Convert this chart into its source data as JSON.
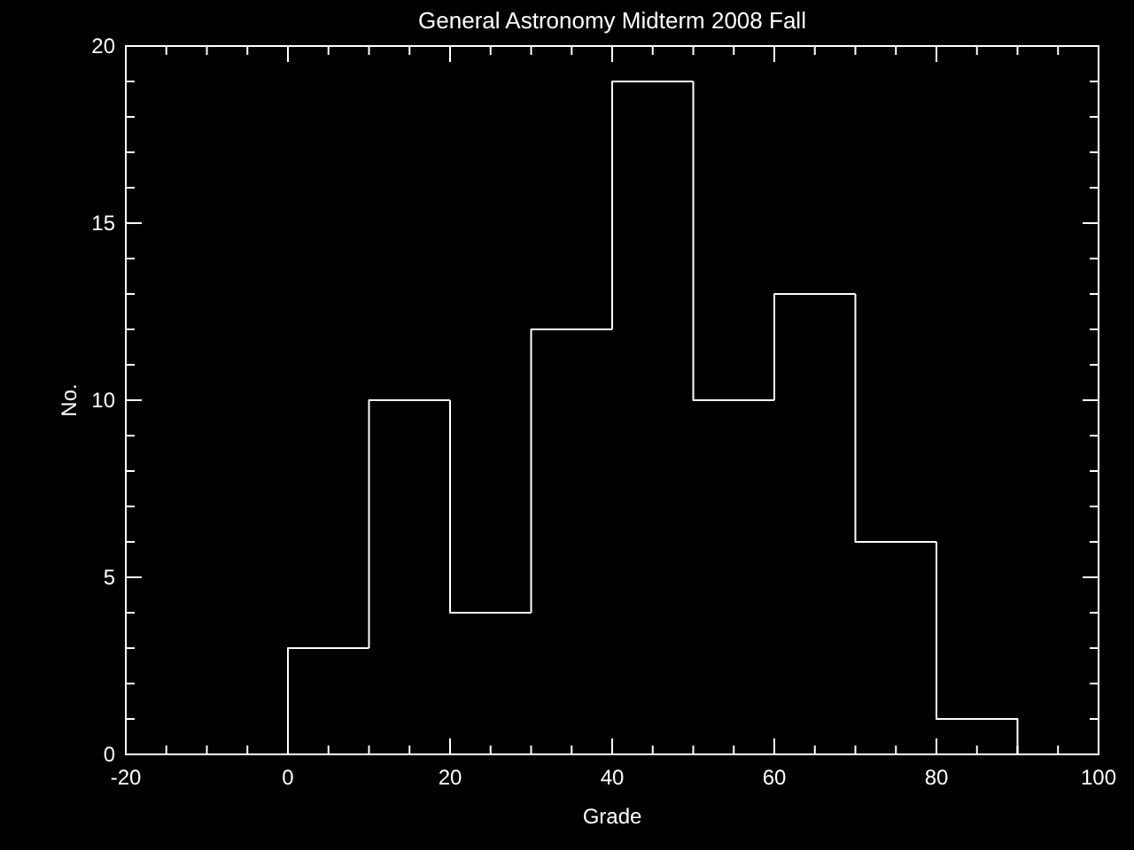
{
  "chart_data": {
    "type": "histogram",
    "title": "General Astronomy Midterm 2008 Fall",
    "xlabel": "Grade",
    "ylabel": "No.",
    "bins": [
      0,
      10,
      20,
      30,
      40,
      50,
      60,
      70,
      80,
      90
    ],
    "values": [
      3,
      10,
      4,
      12,
      19,
      10,
      13,
      6,
      1
    ],
    "color": "#ffffff",
    "xlim": [
      -20,
      100
    ],
    "xticks": [
      -20,
      0,
      20,
      40,
      60,
      80,
      100
    ],
    "ylim": [
      0,
      20
    ],
    "yticks": [
      0,
      5,
      10,
      15,
      20
    ],
    "grid": false
  }
}
